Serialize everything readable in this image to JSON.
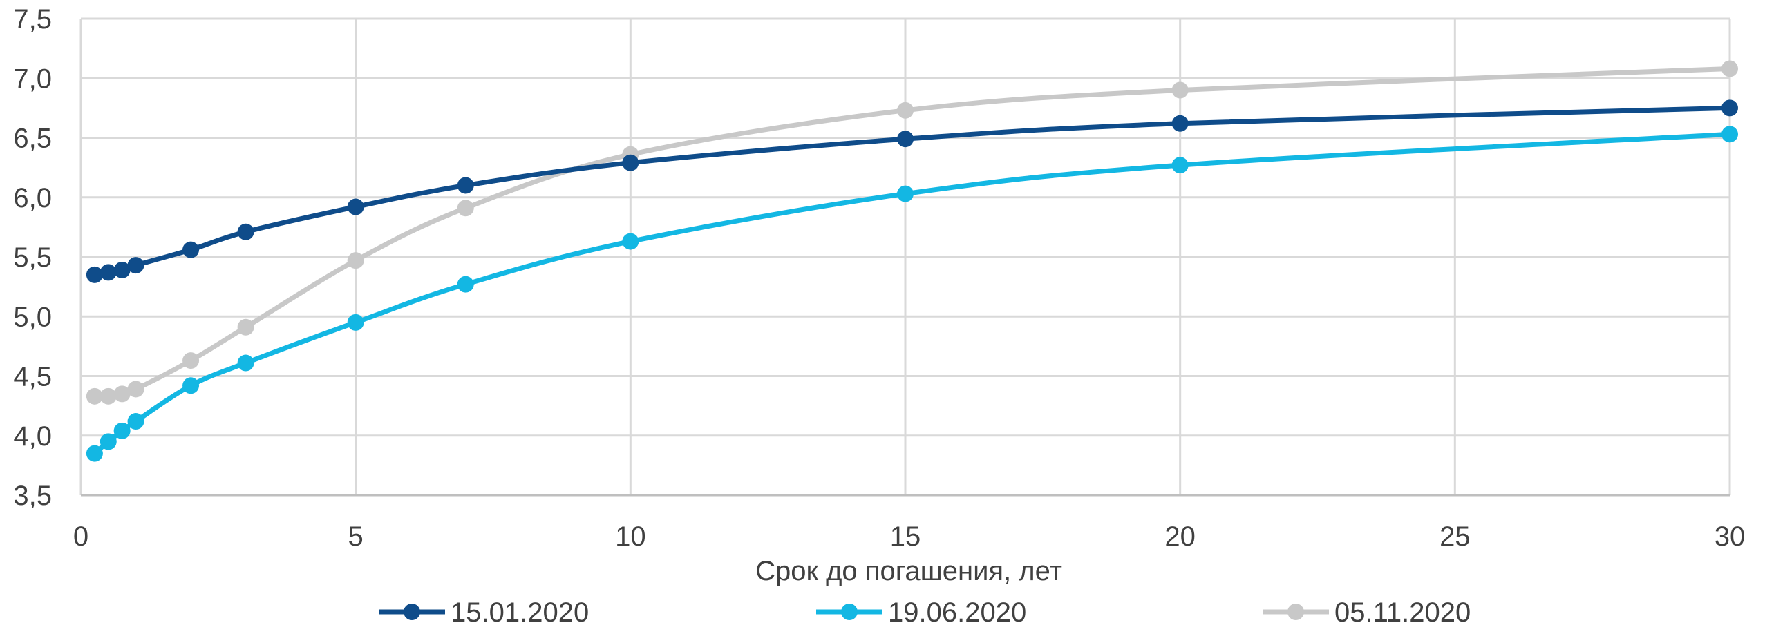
{
  "chart_data": {
    "type": "line",
    "title": "",
    "xlabel": "Срок до погашения, лет",
    "ylabel": "",
    "xlim": [
      0,
      30
    ],
    "ylim": [
      3.5,
      7.5
    ],
    "x_ticks": [
      0,
      5,
      10,
      15,
      20,
      25,
      30
    ],
    "x_tick_labels": [
      "0",
      "5",
      "10",
      "15",
      "20",
      "25",
      "30"
    ],
    "y_ticks": [
      3.5,
      4.0,
      4.5,
      5.0,
      5.5,
      6.0,
      6.5,
      7.0,
      7.5
    ],
    "y_tick_labels": [
      "3,5",
      "4,0",
      "4,5",
      "5,0",
      "5,5",
      "6,0",
      "6,5",
      "7,0",
      "7,5"
    ],
    "grid": true,
    "legend_position": "bottom",
    "series": [
      {
        "name": "15.01.2020",
        "color": "#0f4c8a",
        "points": [
          [
            0.25,
            5.35
          ],
          [
            0.5,
            5.37
          ],
          [
            0.75,
            5.39
          ],
          [
            1,
            5.43
          ],
          [
            2,
            5.56
          ],
          [
            3,
            5.71
          ],
          [
            5,
            5.92
          ],
          [
            7,
            6.1
          ],
          [
            10,
            6.29
          ],
          [
            15,
            6.49
          ],
          [
            20,
            6.62
          ],
          [
            30,
            6.75
          ]
        ]
      },
      {
        "name": "19.06.2020",
        "color": "#13b7e3",
        "points": [
          [
            0.25,
            3.85
          ],
          [
            0.5,
            3.95
          ],
          [
            0.75,
            4.04
          ],
          [
            1,
            4.12
          ],
          [
            2,
            4.42
          ],
          [
            3,
            4.61
          ],
          [
            5,
            4.95
          ],
          [
            7,
            5.27
          ],
          [
            10,
            5.63
          ],
          [
            15,
            6.03
          ],
          [
            20,
            6.27
          ],
          [
            30,
            6.53
          ]
        ]
      },
      {
        "name": "05.11.2020",
        "color": "#c8c8c8",
        "points": [
          [
            0.25,
            4.33
          ],
          [
            0.5,
            4.33
          ],
          [
            0.75,
            4.35
          ],
          [
            1,
            4.39
          ],
          [
            2,
            4.63
          ],
          [
            3,
            4.91
          ],
          [
            5,
            5.47
          ],
          [
            7,
            5.91
          ],
          [
            10,
            6.36
          ],
          [
            15,
            6.73
          ],
          [
            20,
            6.9
          ],
          [
            30,
            7.08
          ]
        ]
      }
    ]
  }
}
